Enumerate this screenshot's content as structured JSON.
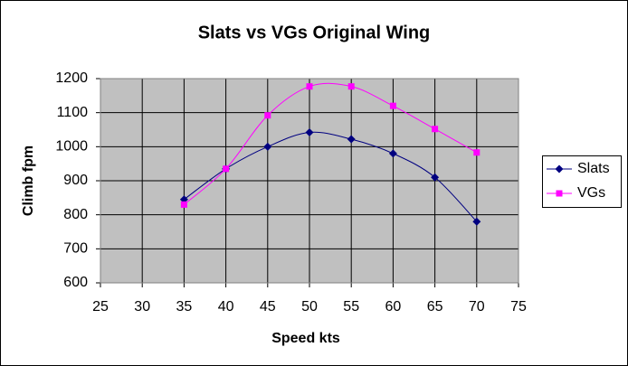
{
  "chart_data": {
    "type": "line",
    "title": "Slats vs VGs Original Wing",
    "x_label": "Speed kts",
    "y_label": "Climb fpm",
    "x": [
      35,
      40,
      45,
      50,
      55,
      60,
      65,
      70
    ],
    "series": [
      {
        "name": "Slats",
        "color": "#000080",
        "marker": "diamond",
        "values": [
          845,
          935,
          1000,
          1042,
          1022,
          980,
          910,
          780
        ]
      },
      {
        "name": "VGs",
        "color": "#ff00ff",
        "marker": "square",
        "values": [
          830,
          935,
          1092,
          1177,
          1177,
          1120,
          1052,
          983
        ]
      }
    ],
    "xlim": [
      25,
      75
    ],
    "xticks": [
      25,
      30,
      35,
      40,
      45,
      50,
      55,
      60,
      65,
      70,
      75
    ],
    "ylim": [
      600,
      1200
    ],
    "yticks": [
      600,
      700,
      800,
      900,
      1000,
      1100,
      1200
    ],
    "grid": true,
    "smooth": true,
    "legend": "right"
  }
}
